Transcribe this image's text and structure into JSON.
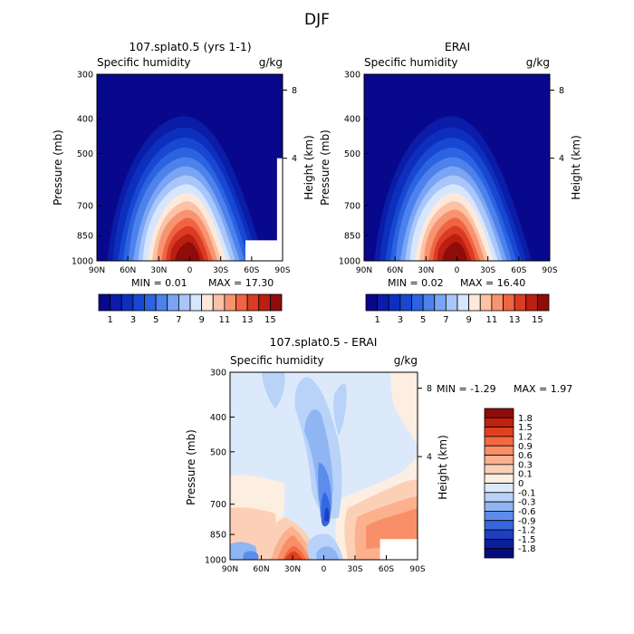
{
  "title": "DJF",
  "chart_data": [
    {
      "type": "heatmap",
      "panel": "model",
      "title": "107.splat0.5 (yrs 1-1)",
      "variable": "Specific humidity",
      "units": "g/kg",
      "ylabel": "Pressure (mb)",
      "y2label": "Height (km)",
      "x_ticks": [
        "90N",
        "60N",
        "30N",
        "0",
        "30S",
        "60S",
        "90S"
      ],
      "y_ticks": [
        "300",
        "400",
        "500",
        "700",
        "850",
        "1000"
      ],
      "y2_ticks": [
        "8",
        "4"
      ],
      "min_text": "MIN =   0.01",
      "max_text": "MAX =  17.30",
      "colorbar_ticks": [
        "1",
        "3",
        "5",
        "7",
        "9",
        "11",
        "13",
        "15"
      ],
      "colors": [
        "#08088c",
        "#0a1ca8",
        "#0d2fbe",
        "#1848d2",
        "#2b63e0",
        "#4d82ec",
        "#7aa5f4",
        "#a8c6fa",
        "#d6e6fd",
        "#fde9dc",
        "#fbc2a5",
        "#f7946f",
        "#ef6543",
        "#da3b22",
        "#bb1f12",
        "#8e0c0a"
      ],
      "peak_value": 17.3,
      "white_patch": true
    },
    {
      "type": "heatmap",
      "panel": "obs",
      "title": "ERAI",
      "variable": "Specific humidity",
      "units": "g/kg",
      "ylabel": "Pressure (mb)",
      "y2label": "Height (km)",
      "x_ticks": [
        "90N",
        "60N",
        "30N",
        "0",
        "30S",
        "60S",
        "90S"
      ],
      "y_ticks": [
        "300",
        "400",
        "500",
        "700",
        "850",
        "1000"
      ],
      "y2_ticks": [
        "8",
        "4"
      ],
      "min_text": "MIN =   0.02",
      "max_text": "MAX =  16.40",
      "colorbar_ticks": [
        "1",
        "3",
        "5",
        "7",
        "9",
        "11",
        "13",
        "15"
      ],
      "colors": [
        "#08088c",
        "#0a1ca8",
        "#0d2fbe",
        "#1848d2",
        "#2b63e0",
        "#4d82ec",
        "#7aa5f4",
        "#a8c6fa",
        "#d6e6fd",
        "#fde9dc",
        "#fbc2a5",
        "#f7946f",
        "#ef6543",
        "#da3b22",
        "#bb1f12",
        "#8e0c0a"
      ],
      "peak_value": 16.4,
      "white_patch": false
    },
    {
      "type": "heatmap",
      "panel": "diff",
      "title": "107.splat0.5 - ERAI",
      "variable": "Specific humidity",
      "units": "g/kg",
      "ylabel": "Pressure (mb)",
      "y2label": "Height (km)",
      "x_ticks": [
        "90N",
        "60N",
        "30N",
        "0",
        "30S",
        "60S",
        "90S"
      ],
      "y_ticks": [
        "300",
        "400",
        "500",
        "700",
        "850",
        "1000"
      ],
      "y2_ticks": [
        "8",
        "4"
      ],
      "min_text": "MIN =  -1.29",
      "max_text": "MAX =   1.97",
      "colorbar_labels": [
        "1.8",
        "1.5",
        "1.2",
        "0.9",
        "0.6",
        "0.3",
        "0.1",
        "0",
        "-0.1",
        "-0.3",
        "-0.6",
        "-0.9",
        "-1.2",
        "-1.5",
        "-1.8"
      ],
      "colors": [
        "#8e0c0a",
        "#c0200f",
        "#e0401f",
        "#f26a42",
        "#f88f68",
        "#fbb08e",
        "#fcd0b6",
        "#fdeee2",
        "#dbe9fb",
        "#b8d2f8",
        "#8fb5f3",
        "#5c8ded",
        "#3566de",
        "#1d40bf",
        "#0b1f9a",
        "#060b80"
      ],
      "white_patch": true
    }
  ]
}
